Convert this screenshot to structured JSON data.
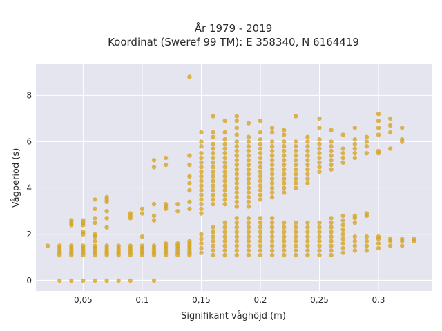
{
  "chart_data": {
    "type": "scatter",
    "title": "År 1979 - 2019",
    "subtitle": "Koordinat (Sweref 99 TM): E 358340, N 6164419",
    "xlabel": "Signifikant våghöjd (m)",
    "ylabel": "Vågperiod (s)",
    "xlim": [
      0.01,
      0.345
    ],
    "ylim": [
      -0.45,
      9.35
    ],
    "xticks": [
      {
        "value": 0.05,
        "label": "0,05"
      },
      {
        "value": 0.1,
        "label": "0,1"
      },
      {
        "value": 0.15,
        "label": "0,15"
      },
      {
        "value": 0.2,
        "label": "0,2"
      },
      {
        "value": 0.25,
        "label": "0,25"
      },
      {
        "value": 0.3,
        "label": "0,3"
      }
    ],
    "yticks": [
      {
        "value": 0,
        "label": "0"
      },
      {
        "value": 2,
        "label": "2"
      },
      {
        "value": 4,
        "label": "4"
      },
      {
        "value": 6,
        "label": "6"
      },
      {
        "value": 8,
        "label": "8"
      }
    ],
    "grid": true,
    "background_color": "#e5e5ef",
    "marker_color": "#d4a017",
    "columns": [
      {
        "x": 0.02,
        "y": [
          1.5
        ]
      },
      {
        "x": 0.03,
        "y": [
          0,
          1.1,
          1.2,
          1.3,
          1.4,
          1.5
        ]
      },
      {
        "x": 0.04,
        "y": [
          0,
          1.1,
          1.2,
          1.3,
          1.4,
          1.5,
          2.4,
          2.5,
          2.6
        ]
      },
      {
        "x": 0.05,
        "y": [
          0,
          1.1,
          1.2,
          1.3,
          1.4,
          1.5,
          2.0,
          2.1,
          2.4,
          2.5,
          2.6
        ]
      },
      {
        "x": 0.06,
        "y": [
          0,
          1.1,
          1.2,
          1.3,
          1.4,
          1.5,
          1.7,
          1.9,
          2.0,
          2.5,
          2.7,
          3.1,
          3.5
        ]
      },
      {
        "x": 0.07,
        "y": [
          0,
          1.1,
          1.2,
          1.3,
          1.4,
          1.5,
          2.3,
          2.7,
          3.0,
          3.4,
          3.5,
          3.6
        ]
      },
      {
        "x": 0.08,
        "y": [
          0,
          1.1,
          1.2,
          1.3,
          1.4,
          1.5
        ]
      },
      {
        "x": 0.09,
        "y": [
          0,
          1.1,
          1.2,
          1.3,
          1.4,
          1.5,
          2.7,
          2.8,
          2.9
        ]
      },
      {
        "x": 0.1,
        "y": [
          1.1,
          1.2,
          1.3,
          1.4,
          1.5,
          1.9,
          2.9,
          3.1
        ]
      },
      {
        "x": 0.11,
        "y": [
          0,
          1.1,
          1.2,
          1.3,
          1.4,
          1.5,
          2.6,
          2.8,
          3.3,
          4.9,
          5.2
        ]
      },
      {
        "x": 0.12,
        "y": [
          1.1,
          1.2,
          1.3,
          1.4,
          1.5,
          1.6,
          3.1,
          3.2,
          3.3,
          5.0,
          5.3
        ]
      },
      {
        "x": 0.13,
        "y": [
          1.1,
          1.2,
          1.3,
          1.4,
          1.5,
          1.6,
          3.0,
          3.3
        ]
      },
      {
        "x": 0.14,
        "y": [
          1.1,
          1.2,
          1.3,
          1.4,
          1.5,
          1.6,
          1.7,
          3.1,
          3.4,
          3.9,
          4.2,
          4.5,
          5.0,
          5.4,
          8.8
        ]
      },
      {
        "x": 0.15,
        "y": [
          1.2,
          1.4,
          1.6,
          1.8,
          2.0,
          2.9,
          3.1,
          3.3,
          3.5,
          3.7,
          3.9,
          4.1,
          4.3,
          4.5,
          4.7,
          4.9,
          5.1,
          5.3,
          5.5,
          5.8,
          6.0,
          6.4
        ]
      },
      {
        "x": 0.16,
        "y": [
          1.1,
          1.3,
          1.5,
          1.7,
          1.9,
          2.1,
          2.3,
          3.3,
          3.5,
          3.7,
          3.9,
          4.1,
          4.3,
          4.5,
          4.7,
          4.9,
          5.1,
          5.3,
          5.5,
          5.7,
          5.9,
          6.2,
          6.4,
          7.1
        ]
      },
      {
        "x": 0.17,
        "y": [
          1.1,
          1.3,
          1.5,
          1.7,
          1.9,
          2.1,
          2.3,
          2.5,
          3.3,
          3.5,
          3.7,
          3.9,
          4.1,
          4.3,
          4.5,
          4.7,
          4.9,
          5.1,
          5.3,
          5.5,
          5.7,
          5.9,
          6.1,
          6.4,
          6.9
        ]
      },
      {
        "x": 0.18,
        "y": [
          1.1,
          1.3,
          1.5,
          1.7,
          1.9,
          2.1,
          2.3,
          2.5,
          2.7,
          3.2,
          3.4,
          3.6,
          3.8,
          4.0,
          4.2,
          4.4,
          4.6,
          4.8,
          5.0,
          5.2,
          5.4,
          5.6,
          5.8,
          6.0,
          6.3,
          6.6,
          6.9,
          7.1
        ]
      },
      {
        "x": 0.19,
        "y": [
          1.1,
          1.3,
          1.5,
          1.7,
          1.9,
          2.1,
          2.3,
          2.5,
          2.7,
          3.2,
          3.4,
          3.6,
          3.8,
          4.0,
          4.2,
          4.4,
          4.6,
          4.8,
          5.0,
          5.2,
          5.4,
          5.6,
          5.8,
          6.0,
          6.2,
          6.8
        ]
      },
      {
        "x": 0.2,
        "y": [
          1.1,
          1.3,
          1.5,
          1.7,
          1.9,
          2.1,
          2.3,
          2.5,
          2.7,
          3.5,
          3.7,
          3.9,
          4.1,
          4.3,
          4.5,
          4.7,
          4.9,
          5.1,
          5.3,
          5.5,
          5.7,
          5.9,
          6.1,
          6.4,
          6.9
        ]
      },
      {
        "x": 0.21,
        "y": [
          1.1,
          1.3,
          1.5,
          1.7,
          1.9,
          2.1,
          2.3,
          2.5,
          2.7,
          3.6,
          3.8,
          4.0,
          4.2,
          4.4,
          4.6,
          4.8,
          5.0,
          5.2,
          5.4,
          5.6,
          5.8,
          6.0,
          6.4,
          6.6
        ]
      },
      {
        "x": 0.22,
        "y": [
          1.1,
          1.3,
          1.5,
          1.7,
          1.9,
          2.1,
          2.3,
          2.5,
          3.8,
          4.0,
          4.2,
          4.4,
          4.6,
          4.8,
          5.0,
          5.2,
          5.4,
          5.6,
          5.8,
          6.0,
          6.3,
          6.5
        ]
      },
      {
        "x": 0.23,
        "y": [
          1.1,
          1.3,
          1.5,
          1.7,
          1.9,
          2.1,
          2.3,
          2.5,
          4.0,
          4.2,
          4.4,
          4.6,
          4.8,
          5.0,
          5.2,
          5.4,
          5.6,
          5.8,
          6.0,
          7.1
        ]
      },
      {
        "x": 0.24,
        "y": [
          1.1,
          1.3,
          1.5,
          1.7,
          1.9,
          2.1,
          2.3,
          2.5,
          4.2,
          4.4,
          4.6,
          4.8,
          5.0,
          5.2,
          5.4,
          5.6,
          5.8,
          6.0,
          6.2
        ]
      },
      {
        "x": 0.25,
        "y": [
          1.1,
          1.3,
          1.5,
          1.7,
          1.9,
          2.1,
          2.3,
          2.5,
          4.7,
          4.9,
          5.1,
          5.3,
          5.5,
          5.7,
          5.9,
          6.1,
          6.6,
          7.0
        ]
      },
      {
        "x": 0.26,
        "y": [
          1.1,
          1.3,
          1.5,
          1.7,
          1.9,
          2.1,
          2.3,
          2.5,
          2.7,
          4.8,
          5.0,
          5.2,
          5.4,
          5.6,
          5.8,
          6.0,
          6.5
        ]
      },
      {
        "x": 0.27,
        "y": [
          1.2,
          1.4,
          1.6,
          1.8,
          2.0,
          2.2,
          2.4,
          2.6,
          2.8,
          5.1,
          5.3,
          5.5,
          5.7,
          6.3
        ]
      },
      {
        "x": 0.28,
        "y": [
          1.3,
          1.5,
          1.7,
          1.9,
          2.5,
          2.7,
          2.8,
          5.3,
          5.5,
          5.7,
          5.9,
          6.1,
          6.6
        ]
      },
      {
        "x": 0.29,
        "y": [
          1.3,
          1.5,
          1.7,
          1.9,
          2.8,
          2.9,
          5.5,
          5.8,
          6.0,
          6.2
        ]
      },
      {
        "x": 0.3,
        "y": [
          1.4,
          1.6,
          1.8,
          1.9,
          5.5,
          5.6,
          6.3,
          6.6,
          6.9,
          7.2
        ]
      },
      {
        "x": 0.31,
        "y": [
          1.5,
          1.7,
          1.8,
          5.7,
          6.4,
          6.7,
          7.0
        ]
      },
      {
        "x": 0.32,
        "y": [
          1.5,
          1.7,
          1.8,
          6.0,
          6.1,
          6.6
        ]
      },
      {
        "x": 0.33,
        "y": [
          1.7,
          1.8
        ]
      }
    ]
  }
}
